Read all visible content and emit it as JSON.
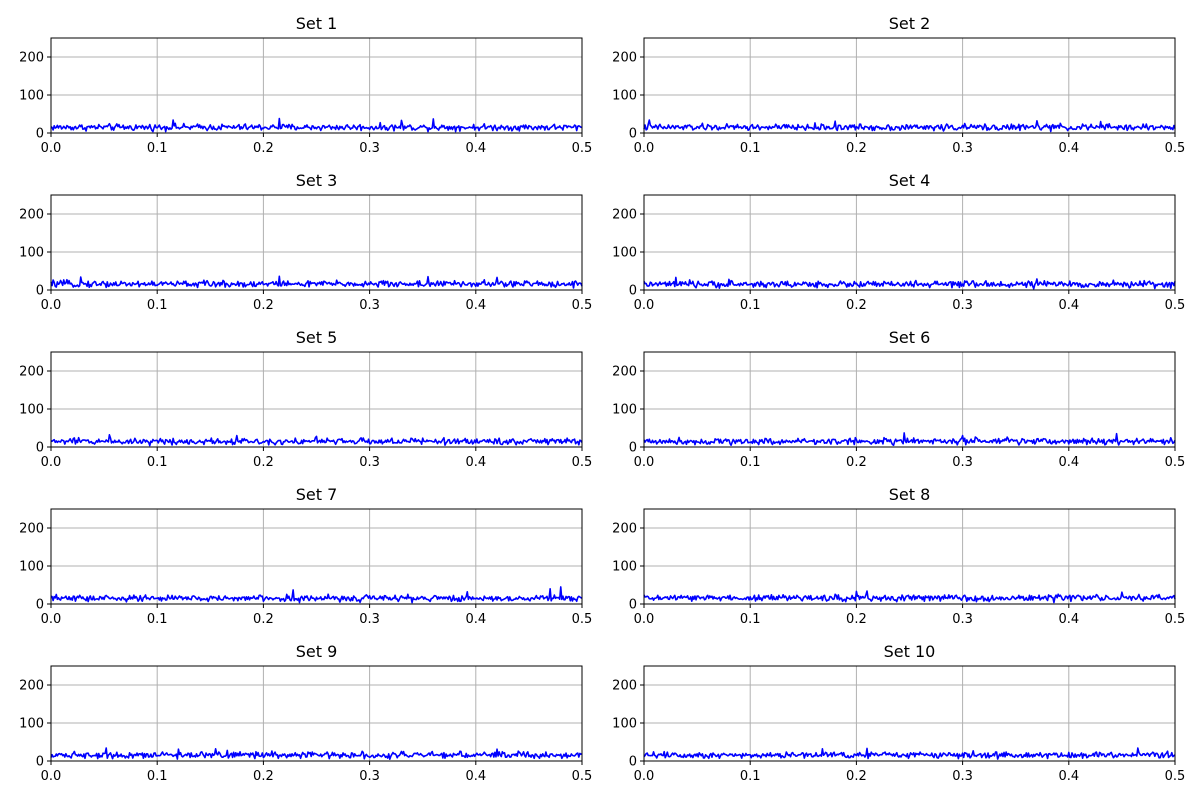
{
  "chart_data": [
    {
      "type": "line",
      "title": "Set 1",
      "xlim": [
        0,
        0.5
      ],
      "ylim": [
        0,
        250
      ],
      "xticks": [
        "0.0",
        "0.1",
        "0.2",
        "0.3",
        "0.4",
        "0.5"
      ],
      "yticks": [
        "0",
        "100",
        "200"
      ],
      "grid": true,
      "series": [
        {
          "color": "#0000ff",
          "baseline": 15,
          "noise": 6,
          "spikes": [
            [
              0.115,
              34
            ],
            [
              0.215,
              38
            ],
            [
              0.33,
              33
            ],
            [
              0.36,
              37
            ]
          ]
        }
      ]
    },
    {
      "type": "line",
      "title": "Set 2",
      "xlim": [
        0,
        0.5
      ],
      "ylim": [
        0,
        250
      ],
      "xticks": [
        "0.0",
        "0.1",
        "0.2",
        "0.3",
        "0.4",
        "0.5"
      ],
      "yticks": [
        "0",
        "100",
        "200"
      ],
      "grid": true,
      "series": [
        {
          "color": "#0000ff",
          "baseline": 15,
          "noise": 6,
          "spikes": [
            [
              0.005,
              34
            ],
            [
              0.18,
              31
            ],
            [
              0.37,
              32
            ],
            [
              0.43,
              30
            ]
          ]
        }
      ]
    },
    {
      "type": "line",
      "title": "Set 3",
      "xlim": [
        0,
        0.5
      ],
      "ylim": [
        0,
        250
      ],
      "xticks": [
        "0.0",
        "0.1",
        "0.2",
        "0.3",
        "0.4",
        "0.5"
      ],
      "yticks": [
        "0",
        "100",
        "200"
      ],
      "grid": true,
      "series": [
        {
          "color": "#0000ff",
          "baseline": 16,
          "noise": 6,
          "spikes": [
            [
              0.028,
              34
            ],
            [
              0.215,
              36
            ],
            [
              0.355,
              35
            ],
            [
              0.42,
              33
            ]
          ]
        }
      ]
    },
    {
      "type": "line",
      "title": "Set 4",
      "xlim": [
        0,
        0.5
      ],
      "ylim": [
        0,
        250
      ],
      "xticks": [
        "0.0",
        "0.1",
        "0.2",
        "0.3",
        "0.4",
        "0.5"
      ],
      "yticks": [
        "0",
        "100",
        "200"
      ],
      "grid": true,
      "series": [
        {
          "color": "#0000ff",
          "baseline": 15,
          "noise": 6,
          "spikes": [
            [
              0.03,
              33
            ],
            [
              0.08,
              28
            ],
            [
              0.37,
              29
            ]
          ]
        }
      ]
    },
    {
      "type": "line",
      "title": "Set 5",
      "xlim": [
        0,
        0.5
      ],
      "ylim": [
        0,
        250
      ],
      "xticks": [
        "0.0",
        "0.1",
        "0.2",
        "0.3",
        "0.4",
        "0.5"
      ],
      "yticks": [
        "0",
        "100",
        "200"
      ],
      "grid": true,
      "series": [
        {
          "color": "#0000ff",
          "baseline": 15,
          "noise": 6,
          "spikes": [
            [
              0.055,
              32
            ],
            [
              0.175,
              30
            ],
            [
              0.25,
              28
            ]
          ]
        }
      ]
    },
    {
      "type": "line",
      "title": "Set 6",
      "xlim": [
        0,
        0.5
      ],
      "ylim": [
        0,
        250
      ],
      "xticks": [
        "0.0",
        "0.1",
        "0.2",
        "0.3",
        "0.4",
        "0.5"
      ],
      "yticks": [
        "0",
        "100",
        "200"
      ],
      "grid": true,
      "series": [
        {
          "color": "#0000ff",
          "baseline": 15,
          "noise": 6,
          "spikes": [
            [
              0.245,
              37
            ],
            [
              0.3,
              30
            ],
            [
              0.445,
              35
            ]
          ]
        }
      ]
    },
    {
      "type": "line",
      "title": "Set 7",
      "xlim": [
        0,
        0.5
      ],
      "ylim": [
        0,
        250
      ],
      "xticks": [
        "0.0",
        "0.1",
        "0.2",
        "0.3",
        "0.4",
        "0.5"
      ],
      "yticks": [
        "0",
        "100",
        "200"
      ],
      "grid": true,
      "series": [
        {
          "color": "#0000ff",
          "baseline": 15,
          "noise": 6,
          "spikes": [
            [
              0.228,
              37
            ],
            [
              0.392,
              32
            ],
            [
              0.47,
              40
            ],
            [
              0.48,
              45
            ]
          ]
        }
      ]
    },
    {
      "type": "line",
      "title": "Set 8",
      "xlim": [
        0,
        0.5
      ],
      "ylim": [
        0,
        250
      ],
      "xticks": [
        "0.0",
        "0.1",
        "0.2",
        "0.3",
        "0.4",
        "0.5"
      ],
      "yticks": [
        "0",
        "100",
        "200"
      ],
      "grid": true,
      "series": [
        {
          "color": "#0000ff",
          "baseline": 16,
          "noise": 6,
          "spikes": [
            [
              0.2,
              33
            ],
            [
              0.21,
              34
            ],
            [
              0.45,
              31
            ]
          ]
        }
      ]
    },
    {
      "type": "line",
      "title": "Set 9",
      "xlim": [
        0,
        0.5
      ],
      "ylim": [
        0,
        250
      ],
      "xticks": [
        "0.0",
        "0.1",
        "0.2",
        "0.3",
        "0.4",
        "0.5"
      ],
      "yticks": [
        "0",
        "100",
        "200"
      ],
      "grid": true,
      "series": [
        {
          "color": "#0000ff",
          "baseline": 16,
          "noise": 6,
          "spikes": [
            [
              0.052,
              34
            ],
            [
              0.12,
              31
            ],
            [
              0.155,
              32
            ],
            [
              0.42,
              31
            ]
          ]
        }
      ]
    },
    {
      "type": "line",
      "title": "Set 10",
      "xlim": [
        0,
        0.5
      ],
      "ylim": [
        0,
        250
      ],
      "xticks": [
        "0.0",
        "0.1",
        "0.2",
        "0.3",
        "0.4",
        "0.5"
      ],
      "yticks": [
        "0",
        "100",
        "200"
      ],
      "grid": true,
      "series": [
        {
          "color": "#0000ff",
          "baseline": 16,
          "noise": 6,
          "spikes": [
            [
              0.168,
              32
            ],
            [
              0.21,
              33
            ],
            [
              0.465,
              34
            ]
          ]
        }
      ]
    }
  ]
}
